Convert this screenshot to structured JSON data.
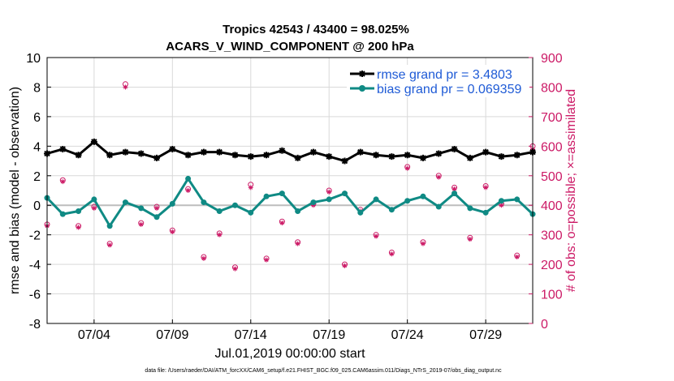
{
  "chart_data": {
    "type": "line",
    "title": "Tropics 42543 / 43400 = 98.025%",
    "subtitle": "ACARS_V_WIND_COMPONENT @ 200 hPa",
    "xlabel": "Jul.01,2019 00:00:00 start",
    "ylabel_left": "rmse and bias (model - observation)",
    "ylabel_right": "# of obs: o=possible; ×=assimilated",
    "ylim_left": [
      -8,
      10
    ],
    "ylim_right": [
      0,
      900
    ],
    "xlim_days": [
      1.0,
      32.0
    ],
    "yticks_left": [
      "10",
      "8",
      "6",
      "4",
      "2",
      "0",
      "-2",
      "-4",
      "-6",
      "-8"
    ],
    "yticks_right": [
      "900",
      "800",
      "700",
      "600",
      "500",
      "400",
      "300",
      "200",
      "100",
      "0"
    ],
    "xticks": [
      {
        "day": 4,
        "label": "07/04"
      },
      {
        "day": 9,
        "label": "07/09"
      },
      {
        "day": 14,
        "label": "07/14"
      },
      {
        "day": 19,
        "label": "07/19"
      },
      {
        "day": 24,
        "label": "07/24"
      },
      {
        "day": 29,
        "label": "07/29"
      }
    ],
    "grid": true,
    "legend_position": "top-right",
    "series": [
      {
        "name": "rmse grand pr = 3.4803",
        "color": "#000000",
        "marker": "star",
        "axis": "left",
        "x": [
          1,
          2,
          3,
          4,
          5,
          6,
          7,
          8,
          9,
          10,
          11,
          12,
          13,
          14,
          15,
          16,
          17,
          18,
          19,
          20,
          21,
          22,
          23,
          24,
          25,
          26,
          27,
          28,
          29,
          30,
          31,
          32
        ],
        "values": [
          3.5,
          3.8,
          3.4,
          4.3,
          3.4,
          3.6,
          3.5,
          3.2,
          3.8,
          3.4,
          3.6,
          3.6,
          3.4,
          3.3,
          3.4,
          3.7,
          3.2,
          3.6,
          3.3,
          3.0,
          3.6,
          3.4,
          3.3,
          3.4,
          3.2,
          3.5,
          3.8,
          3.2,
          3.6,
          3.3,
          3.4,
          3.6
        ]
      },
      {
        "name": "bias grand pr = 0.069359",
        "color": "#0f8a84",
        "marker": "circle",
        "axis": "left",
        "x": [
          1,
          2,
          3,
          4,
          5,
          6,
          7,
          8,
          9,
          10,
          11,
          12,
          13,
          14,
          15,
          16,
          17,
          18,
          19,
          20,
          21,
          22,
          23,
          24,
          25,
          26,
          27,
          28,
          29,
          30,
          31,
          32
        ],
        "values": [
          0.5,
          -0.6,
          -0.4,
          0.4,
          -1.4,
          0.2,
          -0.2,
          -0.8,
          0.1,
          1.8,
          0.2,
          -0.4,
          0.0,
          -0.5,
          0.6,
          0.8,
          -0.4,
          0.2,
          0.4,
          0.8,
          -0.5,
          0.4,
          -0.3,
          0.3,
          0.6,
          -0.1,
          0.8,
          -0.2,
          -0.5,
          0.3,
          0.4,
          -0.6
        ]
      },
      {
        "name": "possible obs count",
        "color": "#cc1a66",
        "marker": "circle-open",
        "axis": "right",
        "x": [
          1,
          2,
          3,
          4,
          5,
          6,
          7,
          8,
          9,
          10,
          11,
          12,
          13,
          14,
          15,
          16,
          17,
          18,
          19,
          20,
          21,
          22,
          23,
          24,
          25,
          26,
          27,
          28,
          29,
          30,
          31,
          32
        ],
        "values": [
          335,
          485,
          330,
          395,
          270,
          810,
          340,
          395,
          315,
          455,
          225,
          305,
          190,
          470,
          220,
          345,
          275,
          405,
          450,
          200,
          385,
          300,
          240,
          530,
          275,
          500,
          460,
          290,
          465,
          405,
          230,
          600
        ]
      },
      {
        "name": "assimilated obs count",
        "color": "#cc1a66",
        "marker": "asterisk",
        "axis": "right",
        "x": [
          1,
          2,
          3,
          4,
          5,
          6,
          7,
          8,
          9,
          10,
          11,
          12,
          13,
          14,
          15,
          16,
          17,
          18,
          19,
          20,
          21,
          22,
          23,
          24,
          25,
          26,
          27,
          28,
          29,
          30,
          31,
          32
        ],
        "values": [
          330,
          480,
          325,
          390,
          265,
          800,
          335,
          390,
          310,
          450,
          220,
          300,
          185,
          460,
          215,
          340,
          270,
          400,
          445,
          195,
          380,
          295,
          235,
          525,
          270,
          495,
          455,
          285,
          460,
          400,
          225,
          590
        ]
      }
    ],
    "legend": [
      "rmse grand pr = 3.4803",
      "bias grand pr = 0.069359"
    ],
    "footnote": "data file: /Users/raeder/DAI/ATM_forcXX/CAM6_setup/f.e21.FHIST_BGC.f09_025.CAM6assim.011/Diags_NTrS_2019-07/obs_diag_output.nc"
  },
  "colors": {
    "rmse": "#000000",
    "bias": "#0f8a84",
    "obs": "#cc1a66",
    "right_axis": "#cc1a66",
    "grid": "#d9d9d9",
    "zero_line": "#bdbdbd"
  }
}
